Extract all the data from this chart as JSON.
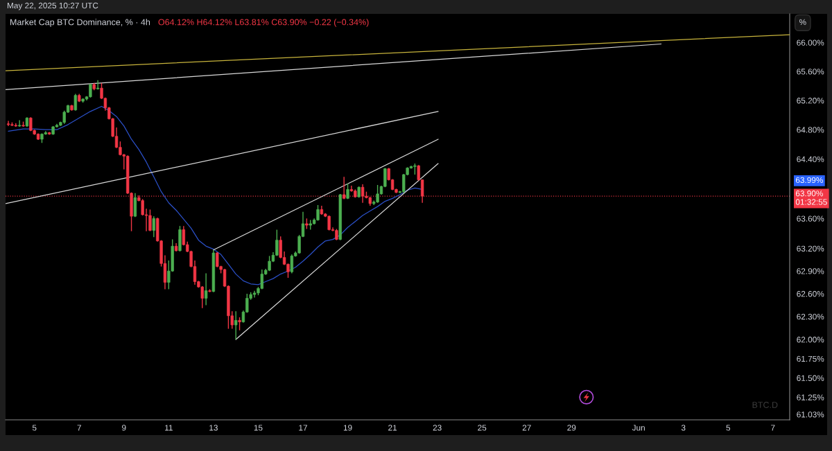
{
  "chart_data": {
    "type": "candlestick",
    "title": "Market Cap BTC Dominance, % · 4h",
    "subtitle": "O64.12% H64.12% L63.81% C63.90% −0.22 (−0.34%)",
    "ylabel": "%",
    "annotations": [
      "May 22, 2025 10:27 UTC",
      "BTC.D",
      "63.99%"
    ],
    "x": [
      "2025-05-03T20:00",
      "2025-05-04T00:00",
      "2025-05-04T04:00",
      "2025-05-04T08:00",
      "2025-05-04T12:00",
      "2025-05-04T16:00",
      "2025-05-04T20:00",
      "2025-05-05T00:00",
      "2025-05-05T04:00",
      "2025-05-05T08:00",
      "2025-05-05T12:00",
      "2025-05-05T16:00",
      "2025-05-05T20:00",
      "2025-05-06T00:00",
      "2025-05-06T04:00",
      "2025-05-06T08:00",
      "2025-05-06T12:00",
      "2025-05-06T16:00",
      "2025-05-06T20:00",
      "2025-05-07T00:00",
      "2025-05-07T04:00",
      "2025-05-07T08:00",
      "2025-05-07T12:00",
      "2025-05-07T16:00",
      "2025-05-07T20:00",
      "2025-05-08T00:00",
      "2025-05-08T04:00",
      "2025-05-08T08:00",
      "2025-05-08T12:00",
      "2025-05-08T16:00",
      "2025-05-08T20:00",
      "2025-05-09T00:00",
      "2025-05-09T04:00",
      "2025-05-09T08:00",
      "2025-05-09T12:00",
      "2025-05-09T16:00",
      "2025-05-09T20:00",
      "2025-05-10T00:00",
      "2025-05-10T04:00",
      "2025-05-10T08:00",
      "2025-05-10T12:00",
      "2025-05-10T16:00",
      "2025-05-10T20:00",
      "2025-05-11T00:00",
      "2025-05-11T04:00",
      "2025-05-11T08:00",
      "2025-05-11T12:00",
      "2025-05-11T16:00",
      "2025-05-11T20:00",
      "2025-05-12T00:00",
      "2025-05-12T04:00",
      "2025-05-12T08:00",
      "2025-05-12T12:00",
      "2025-05-12T16:00",
      "2025-05-12T20:00",
      "2025-05-13T00:00",
      "2025-05-13T04:00",
      "2025-05-13T08:00",
      "2025-05-13T12:00",
      "2025-05-13T16:00",
      "2025-05-13T20:00",
      "2025-05-14T00:00",
      "2025-05-14T04:00",
      "2025-05-14T08:00",
      "2025-05-14T12:00",
      "2025-05-14T16:00",
      "2025-05-14T20:00",
      "2025-05-15T00:00",
      "2025-05-15T04:00",
      "2025-05-15T08:00",
      "2025-05-15T12:00",
      "2025-05-15T16:00",
      "2025-05-15T20:00",
      "2025-05-16T00:00",
      "2025-05-16T04:00",
      "2025-05-16T08:00",
      "2025-05-16T12:00",
      "2025-05-16T16:00",
      "2025-05-16T20:00",
      "2025-05-17T00:00",
      "2025-05-17T04:00",
      "2025-05-17T08:00",
      "2025-05-17T12:00",
      "2025-05-17T16:00",
      "2025-05-17T20:00",
      "2025-05-18T00:00",
      "2025-05-18T04:00",
      "2025-05-18T08:00",
      "2025-05-18T12:00",
      "2025-05-18T16:00",
      "2025-05-18T20:00",
      "2025-05-19T00:00",
      "2025-05-19T04:00",
      "2025-05-19T08:00",
      "2025-05-19T12:00",
      "2025-05-19T16:00",
      "2025-05-19T20:00",
      "2025-05-20T00:00",
      "2025-05-20T04:00",
      "2025-05-20T08:00",
      "2025-05-20T12:00",
      "2025-05-20T16:00",
      "2025-05-20T20:00",
      "2025-05-21T00:00",
      "2025-05-21T04:00",
      "2025-05-21T08:00",
      "2025-05-21T12:00",
      "2025-05-21T16:00",
      "2025-05-21T20:00",
      "2025-05-22T00:00",
      "2025-05-22T04:00",
      "2025-05-22T08:00"
    ],
    "ohlc": [
      [
        64.88,
        64.92,
        64.85,
        64.87
      ],
      [
        64.87,
        64.9,
        64.85,
        64.86
      ],
      [
        64.86,
        64.89,
        64.84,
        64.85
      ],
      [
        64.85,
        64.93,
        64.84,
        64.86
      ],
      [
        64.86,
        64.91,
        64.84,
        64.85
      ],
      [
        64.85,
        64.97,
        64.84,
        64.96
      ],
      [
        64.96,
        64.97,
        64.78,
        64.79
      ],
      [
        64.79,
        64.8,
        64.73,
        64.74
      ],
      [
        64.74,
        64.75,
        64.66,
        64.67
      ],
      [
        64.67,
        64.75,
        64.62,
        64.74
      ],
      [
        64.74,
        64.78,
        64.73,
        64.76
      ],
      [
        64.76,
        64.77,
        64.73,
        64.74
      ],
      [
        64.74,
        64.85,
        64.73,
        64.84
      ],
      [
        64.84,
        64.88,
        64.83,
        64.86
      ],
      [
        64.86,
        64.91,
        64.85,
        64.9
      ],
      [
        64.9,
        65.06,
        64.88,
        65.04
      ],
      [
        65.04,
        65.14,
        65.03,
        65.13
      ],
      [
        65.13,
        65.14,
        65.06,
        65.07
      ],
      [
        65.07,
        65.29,
        65.06,
        65.27
      ],
      [
        65.27,
        65.29,
        65.18,
        65.19
      ],
      [
        65.19,
        65.23,
        65.17,
        65.22
      ],
      [
        65.22,
        65.26,
        65.2,
        65.25
      ],
      [
        65.25,
        65.43,
        65.24,
        65.42
      ],
      [
        65.42,
        65.44,
        65.34,
        65.36
      ],
      [
        65.36,
        65.48,
        65.35,
        65.37
      ],
      [
        65.37,
        65.44,
        65.22,
        65.23
      ],
      [
        65.23,
        65.24,
        65.06,
        65.1
      ],
      [
        65.1,
        65.11,
        64.94,
        64.95
      ],
      [
        64.95,
        64.96,
        64.7,
        64.71
      ],
      [
        64.71,
        64.83,
        64.55,
        64.56
      ],
      [
        64.56,
        64.64,
        64.45,
        64.46
      ],
      [
        64.46,
        64.47,
        64.26,
        64.44
      ],
      [
        64.44,
        64.45,
        63.93,
        63.94
      ],
      [
        63.94,
        63.95,
        63.43,
        63.63
      ],
      [
        63.63,
        63.94,
        63.62,
        63.88
      ],
      [
        63.88,
        63.91,
        63.83,
        63.84
      ],
      [
        63.84,
        63.86,
        63.64,
        63.65
      ],
      [
        63.65,
        63.73,
        63.43,
        63.64
      ],
      [
        63.64,
        63.72,
        63.43,
        63.44
      ],
      [
        63.44,
        63.63,
        63.35,
        63.6
      ],
      [
        63.6,
        63.61,
        63.29,
        63.3
      ],
      [
        63.3,
        63.31,
        62.96,
        63.0
      ],
      [
        63.0,
        63.11,
        62.66,
        62.75
      ],
      [
        62.75,
        63.04,
        62.66,
        62.9
      ],
      [
        62.9,
        63.32,
        62.89,
        63.23
      ],
      [
        63.23,
        63.27,
        63.16,
        63.17
      ],
      [
        63.17,
        63.5,
        63.16,
        63.45
      ],
      [
        63.45,
        63.5,
        63.24,
        63.25
      ],
      [
        63.25,
        63.29,
        63.15,
        63.16
      ],
      [
        63.16,
        63.17,
        62.95,
        62.96
      ],
      [
        62.96,
        63.04,
        62.72,
        62.76
      ],
      [
        62.76,
        62.77,
        62.68,
        62.69
      ],
      [
        62.69,
        62.7,
        62.41,
        62.54
      ],
      [
        62.54,
        62.87,
        62.45,
        62.64
      ],
      [
        62.64,
        62.66,
        62.62,
        62.63
      ],
      [
        62.63,
        63.18,
        62.62,
        63.14
      ],
      [
        63.14,
        63.15,
        62.95,
        62.96
      ],
      [
        62.96,
        62.97,
        62.87,
        62.92
      ],
      [
        62.92,
        62.93,
        62.69,
        62.7
      ],
      [
        62.7,
        62.71,
        62.14,
        62.31
      ],
      [
        62.31,
        62.37,
        62.14,
        62.19
      ],
      [
        62.19,
        62.37,
        62.0,
        62.25
      ],
      [
        62.25,
        62.29,
        62.12,
        62.23
      ],
      [
        62.23,
        62.38,
        62.22,
        62.36
      ],
      [
        62.36,
        62.6,
        62.35,
        62.54
      ],
      [
        62.54,
        62.62,
        62.52,
        62.59
      ],
      [
        62.59,
        62.64,
        62.55,
        62.61
      ],
      [
        62.61,
        62.69,
        62.58,
        62.67
      ],
      [
        62.67,
        62.92,
        62.66,
        62.86
      ],
      [
        62.86,
        62.93,
        62.85,
        62.91
      ],
      [
        62.91,
        63.1,
        62.9,
        63.03
      ],
      [
        63.03,
        63.15,
        63.02,
        63.11
      ],
      [
        63.11,
        63.45,
        63.1,
        63.31
      ],
      [
        63.31,
        63.36,
        63.07,
        63.08
      ],
      [
        63.08,
        63.16,
        62.98,
        62.99
      ],
      [
        62.99,
        63.0,
        62.81,
        62.89
      ],
      [
        62.89,
        63.12,
        62.87,
        63.1
      ],
      [
        63.1,
        63.16,
        63.09,
        63.14
      ],
      [
        63.14,
        63.38,
        63.13,
        63.36
      ],
      [
        63.36,
        63.69,
        63.35,
        63.53
      ],
      [
        63.53,
        63.6,
        63.46,
        63.51
      ],
      [
        63.51,
        63.58,
        63.45,
        63.53
      ],
      [
        63.53,
        63.6,
        63.52,
        63.58
      ],
      [
        63.58,
        63.78,
        63.57,
        63.72
      ],
      [
        63.72,
        63.77,
        63.65,
        63.66
      ],
      [
        63.66,
        63.67,
        63.62,
        63.63
      ],
      [
        63.63,
        63.64,
        63.44,
        63.45
      ],
      [
        63.45,
        63.48,
        63.43,
        63.44
      ],
      [
        63.44,
        63.46,
        63.31,
        63.32
      ],
      [
        63.32,
        63.93,
        63.31,
        63.92
      ],
      [
        63.92,
        64.16,
        63.86,
        63.87
      ],
      [
        63.87,
        64.07,
        63.86,
        63.99
      ],
      [
        63.99,
        64.04,
        63.96,
        63.97
      ],
      [
        63.97,
        63.99,
        63.88,
        63.89
      ],
      [
        63.89,
        64.03,
        63.88,
        64.02
      ],
      [
        64.02,
        64.06,
        63.81,
        63.9
      ],
      [
        63.9,
        63.96,
        63.87,
        63.88
      ],
      [
        63.88,
        63.89,
        63.77,
        63.8
      ],
      [
        63.8,
        63.84,
        63.78,
        63.82
      ],
      [
        63.82,
        64.05,
        63.81,
        63.93
      ],
      [
        63.93,
        64.04,
        63.92,
        64.03
      ],
      [
        64.03,
        64.28,
        64.02,
        64.27
      ],
      [
        64.27,
        64.28,
        64.11,
        64.12
      ],
      [
        64.12,
        64.13,
        63.98,
        63.99
      ],
      [
        63.99,
        64.0,
        63.94,
        63.95
      ],
      [
        63.95,
        63.97,
        63.94,
        63.96
      ],
      [
        63.96,
        64.2,
        63.94,
        64.19
      ],
      [
        64.19,
        64.29,
        64.18,
        64.28
      ],
      [
        64.28,
        64.31,
        64.27,
        64.3
      ],
      [
        64.3,
        64.34,
        64.19,
        64.31
      ],
      [
        64.31,
        64.32,
        64.11,
        64.12
      ],
      [
        64.12,
        64.12,
        63.81,
        63.9
      ]
    ],
    "colors": [
      "#f23645",
      "#f23645",
      "#f23645",
      "#4caf50",
      "#f23645",
      "#4caf50",
      "#f23645",
      "#f23645",
      "#f23645",
      "#4caf50",
      "#4caf50",
      "#f23645",
      "#4caf50",
      "#4caf50",
      "#4caf50",
      "#4caf50",
      "#4caf50",
      "#f23645",
      "#4caf50",
      "#f23645",
      "#4caf50",
      "#4caf50",
      "#4caf50",
      "#f23645",
      "#4caf50",
      "#f23645",
      "#f23645",
      "#f23645",
      "#f23645",
      "#f23645",
      "#f23645",
      "#f23645",
      "#f23645",
      "#f23645",
      "#4caf50",
      "#f23645",
      "#f23645",
      "#f23645",
      "#f23645",
      "#4caf50",
      "#f23645",
      "#f23645",
      "#f23645",
      "#4caf50",
      "#4caf50",
      "#f23645",
      "#4caf50",
      "#f23645",
      "#f23645",
      "#f23645",
      "#f23645",
      "#f23645",
      "#f23645",
      "#4caf50",
      "#f23645",
      "#4caf50",
      "#f23645",
      "#f23645",
      "#f23645",
      "#f23645",
      "#f23645",
      "#4caf50",
      "#f23645",
      "#4caf50",
      "#4caf50",
      "#4caf50",
      "#4caf50",
      "#4caf50",
      "#4caf50",
      "#4caf50",
      "#4caf50",
      "#4caf50",
      "#4caf50",
      "#f23645",
      "#f23645",
      "#f23645",
      "#4caf50",
      "#4caf50",
      "#4caf50",
      "#4caf50",
      "#f23645",
      "#4caf50",
      "#4caf50",
      "#4caf50",
      "#f23645",
      "#f23645",
      "#f23645",
      "#f23645",
      "#f23645",
      "#4caf50",
      "#f23645",
      "#4caf50",
      "#f23645",
      "#f23645",
      "#4caf50",
      "#f23645",
      "#f23645",
      "#f23645",
      "#4caf50",
      "#4caf50",
      "#4caf50",
      "#4caf50",
      "#f23645",
      "#f23645",
      "#f23645",
      "#4caf50",
      "#4caf50",
      "#4caf50",
      "#4caf50",
      "#4caf50",
      "#f23645",
      "#f23645"
    ],
    "series": [
      {
        "type": "line",
        "color": "#2b50c8",
        "x": [
          "2025-05-03T20:00",
          "2025-05-04T12:00",
          "2025-05-05T00:00",
          "2025-05-05T12:00",
          "2025-05-06T00:00",
          "2025-05-06T12:00",
          "2025-05-07T00:00",
          "2025-05-07T12:00",
          "2025-05-08T00:00",
          "2025-05-08T08:00",
          "2025-05-08T16:00",
          "2025-05-09T00:00",
          "2025-05-09T08:00",
          "2025-05-09T16:00",
          "2025-05-10T00:00",
          "2025-05-10T08:00",
          "2025-05-10T16:00",
          "2025-05-11T00:00",
          "2025-05-11T08:00",
          "2025-05-11T16:00",
          "2025-05-12T00:00",
          "2025-05-12T08:00",
          "2025-05-12T16:00",
          "2025-05-13T00:00",
          "2025-05-13T08:00",
          "2025-05-13T16:00",
          "2025-05-14T00:00",
          "2025-05-14T08:00",
          "2025-05-14T16:00",
          "2025-05-15T00:00",
          "2025-05-15T08:00",
          "2025-05-15T16:00",
          "2025-05-16T00:00",
          "2025-05-16T08:00",
          "2025-05-16T16:00",
          "2025-05-17T00:00",
          "2025-05-17T08:00",
          "2025-05-17T16:00",
          "2025-05-18T00:00",
          "2025-05-18T08:00",
          "2025-05-18T16:00",
          "2025-05-19T00:00",
          "2025-05-19T08:00",
          "2025-05-19T16:00",
          "2025-05-20T00:00",
          "2025-05-20T08:00",
          "2025-05-20T16:00",
          "2025-05-21T00:00",
          "2025-05-21T08:00",
          "2025-05-21T16:00",
          "2025-05-22T00:00",
          "2025-05-22T08:00"
        ],
        "values": [
          64.78,
          64.81,
          64.81,
          64.8,
          64.8,
          64.87,
          64.96,
          65.05,
          65.12,
          65.06,
          64.98,
          64.85,
          64.67,
          64.53,
          64.36,
          64.16,
          63.96,
          63.81,
          63.71,
          63.59,
          63.47,
          63.31,
          63.23,
          63.19,
          63.12,
          62.99,
          62.86,
          62.77,
          62.73,
          62.72,
          62.76,
          62.8,
          62.86,
          62.9,
          62.95,
          63.03,
          63.12,
          63.22,
          63.3,
          63.32,
          63.38,
          63.48,
          63.56,
          63.64,
          63.7,
          63.76,
          63.83,
          63.87,
          63.92,
          63.98,
          64.01,
          63.99
        ]
      },
      {
        "type": "line",
        "color": "#c8b43c",
        "x": [
          "2025-05-03T17:00",
          "2025-06-07T18:00"
        ],
        "values": [
          65.61,
          66.11
        ]
      },
      {
        "type": "line",
        "color": "#d9d9d9",
        "x": [
          "2025-05-03T17:00",
          "2025-06-02T00:00"
        ],
        "values": [
          65.35,
          65.98
        ]
      },
      {
        "type": "line",
        "color": "#d9d9d9",
        "x": [
          "2025-05-03T17:00",
          "2025-05-23T01:00"
        ],
        "values": [
          63.8,
          65.05
        ]
      },
      {
        "type": "line",
        "color": "#d9d9d9",
        "x": [
          "2025-05-13T00:00",
          "2025-05-23T01:00"
        ],
        "values": [
          63.18,
          64.67
        ]
      },
      {
        "type": "line",
        "color": "#d9d9d9",
        "x": [
          "2025-05-14T00:00",
          "2025-05-23T01:00"
        ],
        "values": [
          62.0,
          64.34
        ]
      }
    ],
    "ref_lines": [
      {
        "axis": "y",
        "value": 63.9,
        "label": "63.90%\n01:32:55",
        "color": "#f23645",
        "line_style": "dotted"
      }
    ],
    "log": true,
    "xlim": [
      "2025-05-03T17:00",
      "2025-06-07T18:00"
    ],
    "xticks": [
      {
        "value": "2025-05-05",
        "label": "5"
      },
      {
        "value": "2025-05-07",
        "label": "7"
      },
      {
        "value": "2025-05-09",
        "label": "9"
      },
      {
        "value": "2025-05-11",
        "label": "11"
      },
      {
        "value": "2025-05-13",
        "label": "13"
      },
      {
        "value": "2025-05-15",
        "label": "15"
      },
      {
        "value": "2025-05-17",
        "label": "17"
      },
      {
        "value": "2025-05-19",
        "label": "19"
      },
      {
        "value": "2025-05-21",
        "label": "21"
      },
      {
        "value": "2025-05-23",
        "label": "23"
      },
      {
        "value": "2025-05-25",
        "label": "25"
      },
      {
        "value": "2025-05-27",
        "label": "27"
      },
      {
        "value": "2025-05-29",
        "label": "29"
      },
      {
        "value": "2025-06-01",
        "label": "Jun"
      },
      {
        "value": "2025-06-03",
        "label": "3"
      },
      {
        "value": "2025-06-05",
        "label": "5"
      },
      {
        "value": "2025-06-07",
        "label": "7"
      }
    ],
    "ylim": [
      60.96,
      66.4
    ],
    "yticks": [
      {
        "value": 66.0,
        "label": "66.00%"
      },
      {
        "value": 65.6,
        "label": "65.60%"
      },
      {
        "value": 65.2,
        "label": "65.20%"
      },
      {
        "value": 64.8,
        "label": "64.80%"
      },
      {
        "value": 64.4,
        "label": "64.40%"
      },
      {
        "value": 63.6,
        "label": "63.60%"
      },
      {
        "value": 63.2,
        "label": "63.20%"
      },
      {
        "value": 62.9,
        "label": "62.90%"
      },
      {
        "value": 62.6,
        "label": "62.60%"
      },
      {
        "value": 62.3,
        "label": "62.30%"
      },
      {
        "value": 62.0,
        "label": "62.00%"
      },
      {
        "value": 61.75,
        "label": "61.75%"
      },
      {
        "value": 61.5,
        "label": "61.50%"
      },
      {
        "value": 61.25,
        "label": "61.25%"
      },
      {
        "value": 61.03,
        "label": "61.03%"
      }
    ]
  }
}
